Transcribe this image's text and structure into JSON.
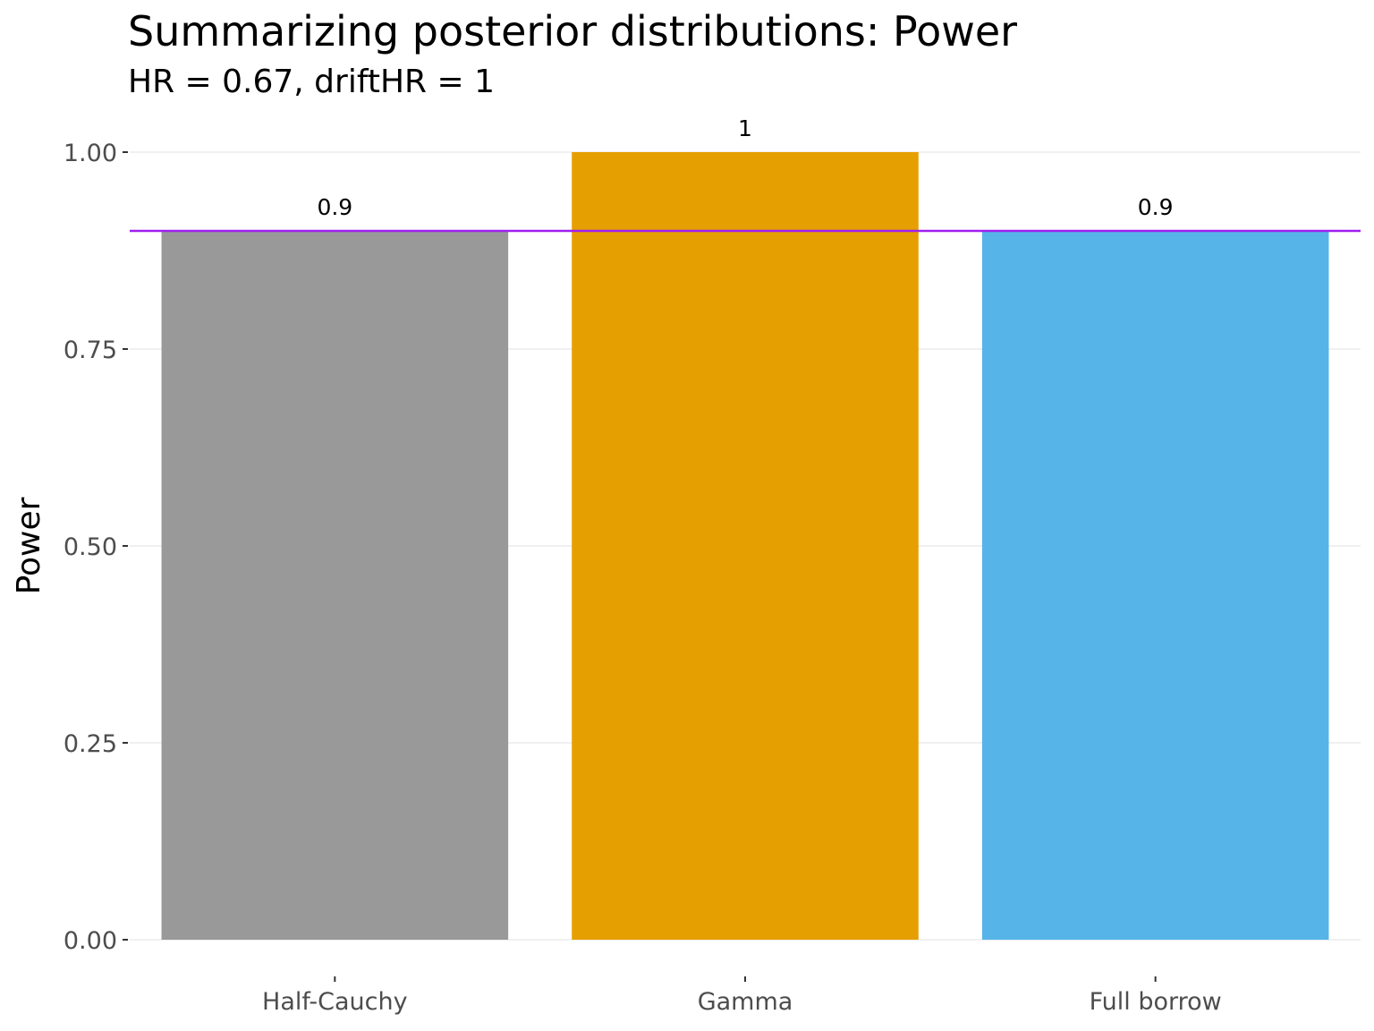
{
  "chart_data": {
    "type": "bar",
    "title": "Summarizing posterior distributions: Power",
    "subtitle": "HR = 0.67, driftHR = 1",
    "xlabel": "",
    "ylabel": "Power",
    "categories": [
      "Half-Cauchy",
      "Gamma",
      "Full borrow"
    ],
    "values": [
      0.9,
      1,
      0.9
    ],
    "value_labels": [
      "0.9",
      "1",
      "0.9"
    ],
    "colors": [
      "#999999",
      "#E69F00",
      "#56B4E9"
    ],
    "ylim": [
      0,
      1
    ],
    "yticks": [
      0,
      0.25,
      0.5,
      0.75,
      1
    ],
    "ytick_labels": [
      "0.00",
      "0.25",
      "0.50",
      "0.75",
      "1.00"
    ],
    "reference_line": {
      "y": 0.9,
      "color": "#A020F0"
    },
    "grid": true,
    "legend": "none"
  }
}
